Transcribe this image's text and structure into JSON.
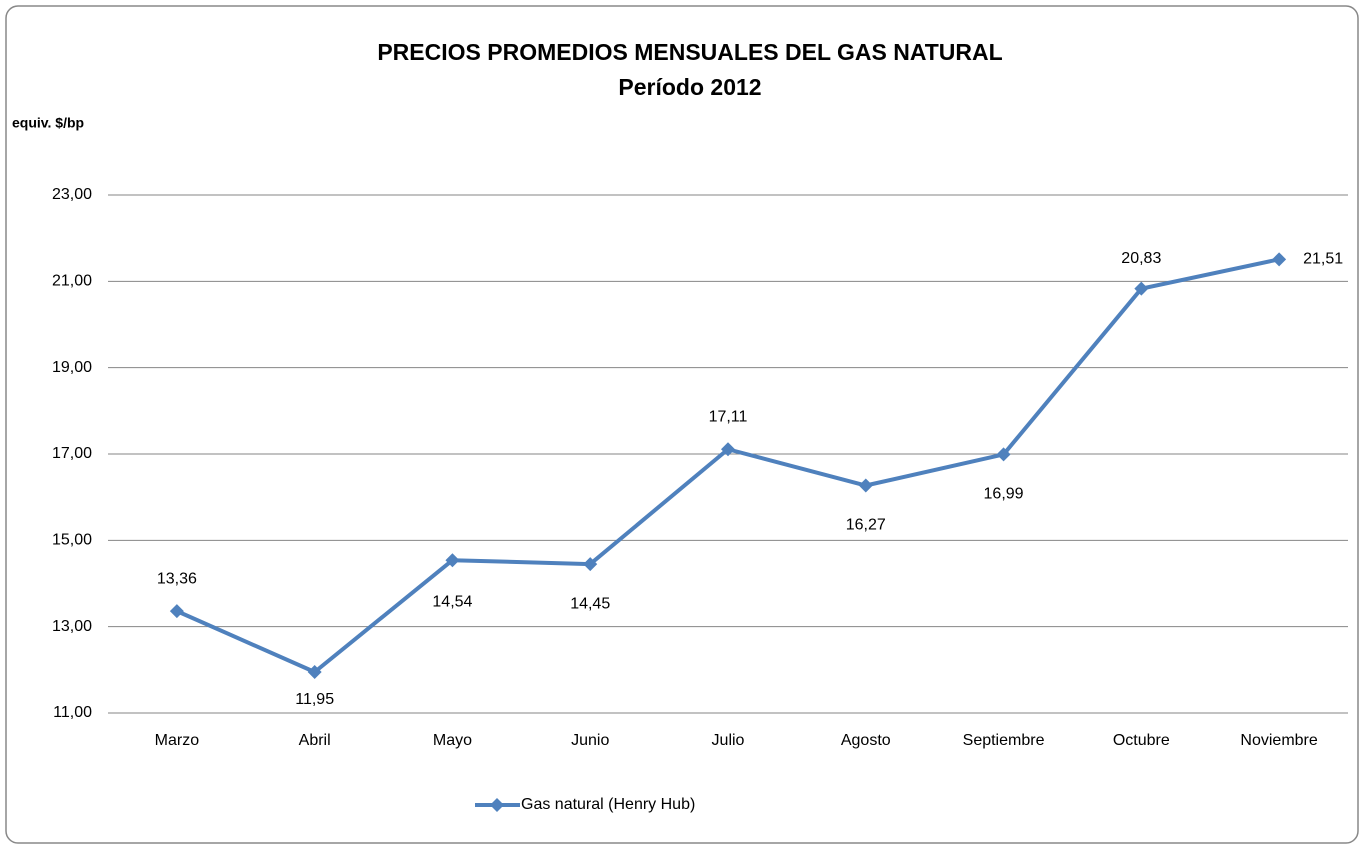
{
  "chart_data": {
    "type": "line",
    "title": "PRECIOS PROMEDIOS MENSUALES DEL GAS NATURAL",
    "subtitle": "Período 2012",
    "y_label": "equiv. $/bp",
    "categories": [
      "Marzo",
      "Abril",
      "Mayo",
      "Junio",
      "Julio",
      "Agosto",
      "Septiembre",
      "Octubre",
      "Noviembre"
    ],
    "series": [
      {
        "name": "Gas natural (Henry Hub)",
        "color": "#4f81bd",
        "values": [
          13.36,
          11.95,
          14.54,
          14.45,
          17.11,
          16.27,
          16.99,
          20.83,
          21.51
        ],
        "value_labels": [
          "13,36",
          "11,95",
          "14,54",
          "14,45",
          "17,11",
          "16,27",
          "16,99",
          "20,83",
          "21,51"
        ]
      }
    ],
    "ylim": [
      11,
      23
    ],
    "yticks": [
      {
        "value": 11,
        "label": "11,00"
      },
      {
        "value": 13,
        "label": "13,00"
      },
      {
        "value": 15,
        "label": "15,00"
      },
      {
        "value": 17,
        "label": "17,00"
      },
      {
        "value": 19,
        "label": "19,00"
      },
      {
        "value": 21,
        "label": "21,00"
      },
      {
        "value": 23,
        "label": "23,00"
      }
    ],
    "grid": true,
    "legend": "bottom"
  }
}
